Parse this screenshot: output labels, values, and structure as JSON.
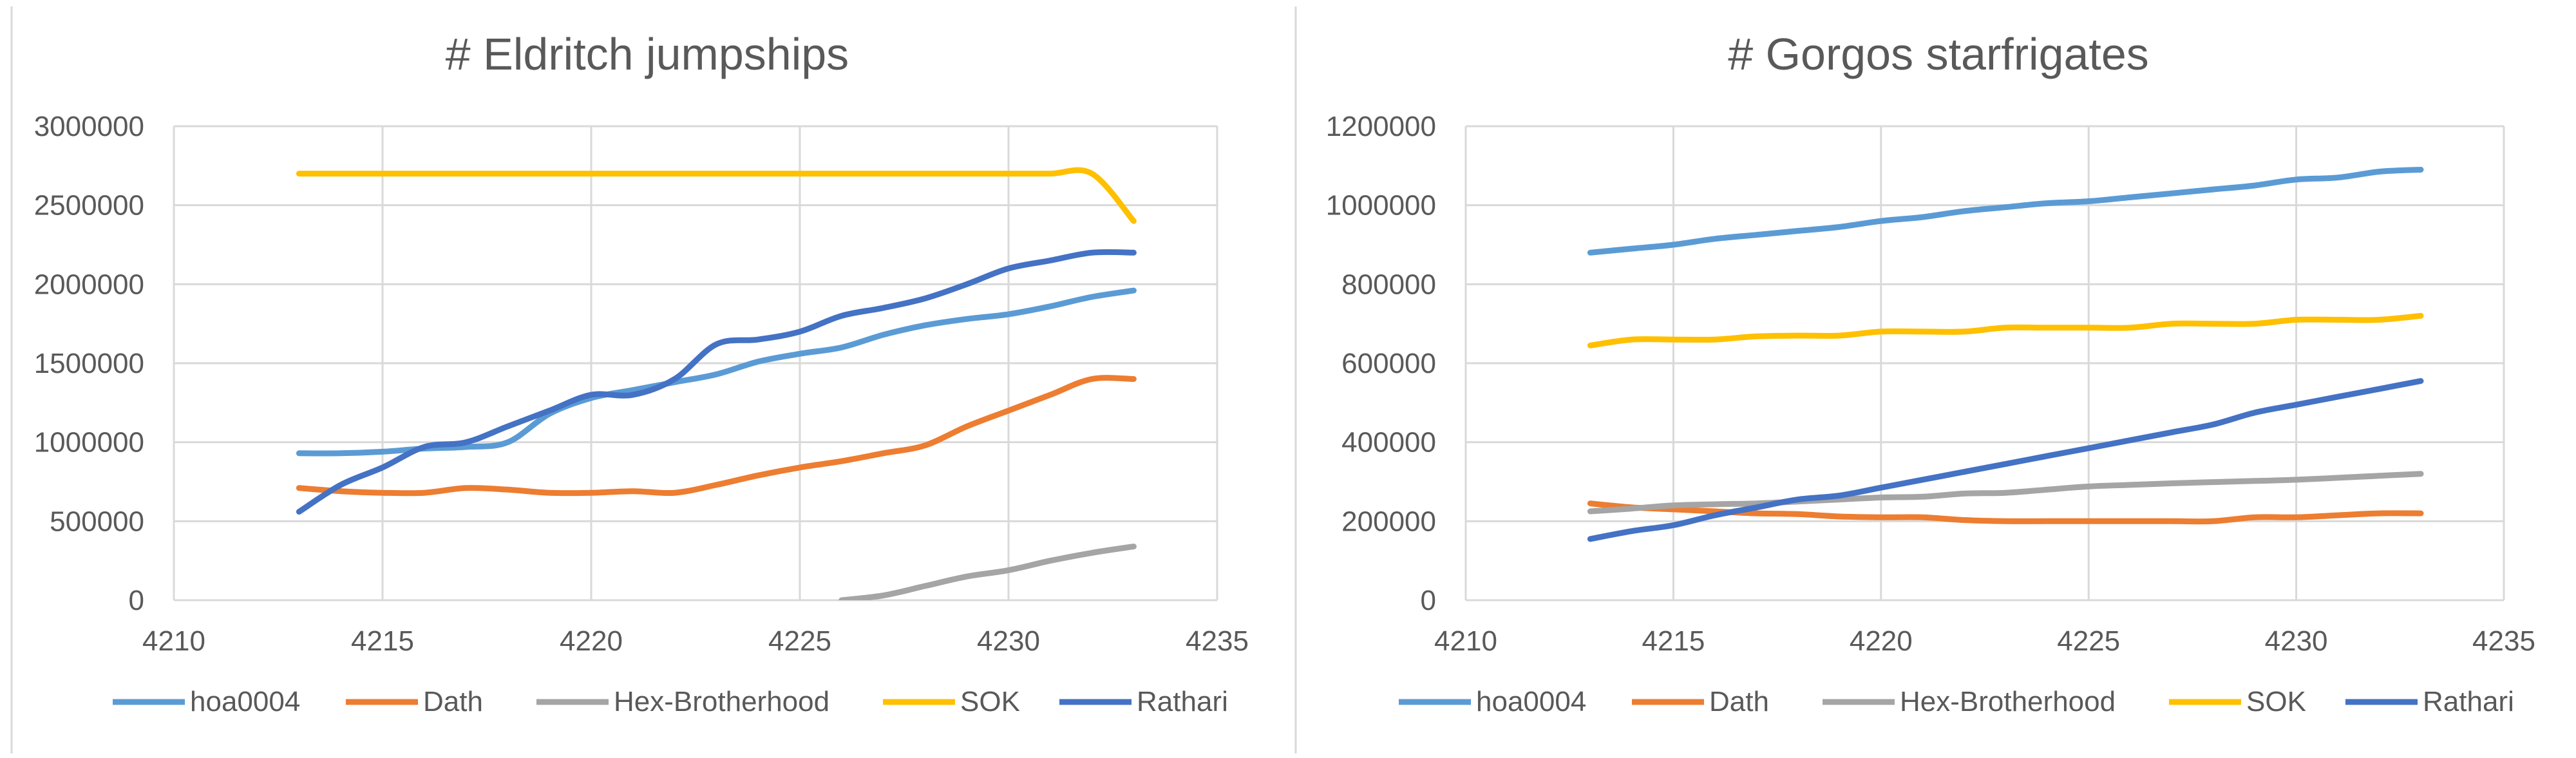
{
  "chart_data": [
    {
      "type": "line",
      "title": "# Eldritch jumpships",
      "xlabel": "",
      "ylabel": "",
      "xlim": [
        4210,
        4235
      ],
      "ylim": [
        0,
        3000000
      ],
      "x_ticks": [
        4210,
        4215,
        4220,
        4225,
        4230,
        4235
      ],
      "y_ticks": [
        0,
        500000,
        1000000,
        1500000,
        2000000,
        2500000,
        3000000
      ],
      "grid": true,
      "legend_position": "bottom",
      "series": [
        {
          "name": "hoa0004",
          "color": "#5B9BD5",
          "x": [
            4213,
            4214,
            4215,
            4216,
            4217,
            4218,
            4219,
            4220,
            4221,
            4222,
            4223,
            4224,
            4225,
            4226,
            4227,
            4228,
            4229,
            4230,
            4231,
            4232,
            4233
          ],
          "y": [
            930000,
            930000,
            940000,
            960000,
            970000,
            1000000,
            1180000,
            1280000,
            1330000,
            1380000,
            1430000,
            1510000,
            1560000,
            1600000,
            1680000,
            1740000,
            1780000,
            1810000,
            1860000,
            1920000,
            1960000
          ]
        },
        {
          "name": "Dath",
          "color": "#ED7D31",
          "x": [
            4213,
            4214,
            4215,
            4216,
            4217,
            4218,
            4219,
            4220,
            4221,
            4222,
            4223,
            4224,
            4225,
            4226,
            4227,
            4228,
            4229,
            4230,
            4231,
            4232,
            4233
          ],
          "y": [
            710000,
            690000,
            680000,
            680000,
            710000,
            700000,
            680000,
            680000,
            690000,
            680000,
            730000,
            790000,
            840000,
            880000,
            930000,
            980000,
            1100000,
            1200000,
            1300000,
            1400000,
            1400000
          ]
        },
        {
          "name": "Hex-Brotherhood",
          "color": "#A5A5A5",
          "x": [
            4226,
            4227,
            4228,
            4229,
            4230,
            4231,
            4232,
            4233
          ],
          "y": [
            0,
            30000,
            90000,
            150000,
            190000,
            250000,
            300000,
            340000
          ]
        },
        {
          "name": "SOK",
          "color": "#FFC000",
          "x": [
            4213,
            4214,
            4215,
            4216,
            4217,
            4218,
            4219,
            4220,
            4221,
            4222,
            4223,
            4224,
            4225,
            4226,
            4227,
            4228,
            4229,
            4230,
            4231,
            4232,
            4233
          ],
          "y": [
            2700000,
            2700000,
            2700000,
            2700000,
            2700000,
            2700000,
            2700000,
            2700000,
            2700000,
            2700000,
            2700000,
            2700000,
            2700000,
            2700000,
            2700000,
            2700000,
            2700000,
            2700000,
            2700000,
            2700000,
            2400000
          ]
        },
        {
          "name": "Rathari",
          "color": "#4472C4",
          "x": [
            4213,
            4214,
            4215,
            4216,
            4217,
            4218,
            4219,
            4220,
            4221,
            4222,
            4223,
            4224,
            4225,
            4226,
            4227,
            4228,
            4229,
            4230,
            4231,
            4232,
            4233
          ],
          "y": [
            560000,
            730000,
            840000,
            970000,
            1000000,
            1100000,
            1200000,
            1300000,
            1300000,
            1400000,
            1620000,
            1650000,
            1700000,
            1800000,
            1850000,
            1910000,
            2000000,
            2100000,
            2150000,
            2200000,
            2200000
          ]
        }
      ]
    },
    {
      "type": "line",
      "title": "# Gorgos starfrigates",
      "xlabel": "",
      "ylabel": "",
      "xlim": [
        4210,
        4235
      ],
      "ylim": [
        0,
        1200000
      ],
      "x_ticks": [
        4210,
        4215,
        4220,
        4225,
        4230,
        4235
      ],
      "y_ticks": [
        0,
        200000,
        400000,
        600000,
        800000,
        1000000,
        1200000
      ],
      "grid": true,
      "legend_position": "bottom",
      "series": [
        {
          "name": "hoa0004",
          "color": "#5B9BD5",
          "x": [
            4213,
            4214,
            4215,
            4216,
            4217,
            4218,
            4219,
            4220,
            4221,
            4222,
            4223,
            4224,
            4225,
            4226,
            4227,
            4228,
            4229,
            4230,
            4231,
            4232,
            4233
          ],
          "y": [
            880000,
            890000,
            900000,
            915000,
            925000,
            935000,
            945000,
            960000,
            970000,
            985000,
            995000,
            1005000,
            1010000,
            1020000,
            1030000,
            1040000,
            1050000,
            1065000,
            1070000,
            1085000,
            1090000
          ]
        },
        {
          "name": "Dath",
          "color": "#ED7D31",
          "x": [
            4213,
            4214,
            4215,
            4216,
            4217,
            4218,
            4219,
            4220,
            4221,
            4222,
            4223,
            4224,
            4225,
            4226,
            4227,
            4228,
            4229,
            4230,
            4231,
            4232,
            4233
          ],
          "y": [
            245000,
            235000,
            230000,
            225000,
            220000,
            218000,
            212000,
            210000,
            210000,
            203000,
            200000,
            200000,
            200000,
            200000,
            200000,
            200000,
            210000,
            210000,
            215000,
            220000,
            220000
          ]
        },
        {
          "name": "Hex-Brotherhood",
          "color": "#A5A5A5",
          "x": [
            4213,
            4214,
            4215,
            4216,
            4217,
            4218,
            4219,
            4220,
            4221,
            4222,
            4223,
            4224,
            4225,
            4226,
            4227,
            4228,
            4229,
            4230,
            4231,
            4232,
            4233
          ],
          "y": [
            225000,
            232000,
            240000,
            243000,
            245000,
            250000,
            255000,
            260000,
            262000,
            270000,
            272000,
            280000,
            288000,
            292000,
            296000,
            299000,
            302000,
            305000,
            310000,
            315000,
            320000
          ]
        },
        {
          "name": "SOK",
          "color": "#FFC000",
          "x": [
            4213,
            4214,
            4215,
            4216,
            4217,
            4218,
            4219,
            4220,
            4221,
            4222,
            4223,
            4224,
            4225,
            4226,
            4227,
            4228,
            4229,
            4230,
            4231,
            4232,
            4233
          ],
          "y": [
            645000,
            660000,
            660000,
            660000,
            668000,
            670000,
            670000,
            680000,
            680000,
            680000,
            690000,
            690000,
            690000,
            690000,
            700000,
            700000,
            700000,
            710000,
            710000,
            710000,
            720000
          ]
        },
        {
          "name": "Rathari",
          "color": "#4472C4",
          "x": [
            4213,
            4214,
            4215,
            4216,
            4217,
            4218,
            4219,
            4220,
            4221,
            4222,
            4223,
            4224,
            4225,
            4226,
            4227,
            4228,
            4229,
            4230,
            4231,
            4232,
            4233
          ],
          "y": [
            155000,
            175000,
            190000,
            215000,
            235000,
            255000,
            265000,
            285000,
            305000,
            325000,
            345000,
            365000,
            385000,
            405000,
            425000,
            445000,
            475000,
            495000,
            515000,
            535000,
            555000
          ]
        }
      ]
    }
  ]
}
